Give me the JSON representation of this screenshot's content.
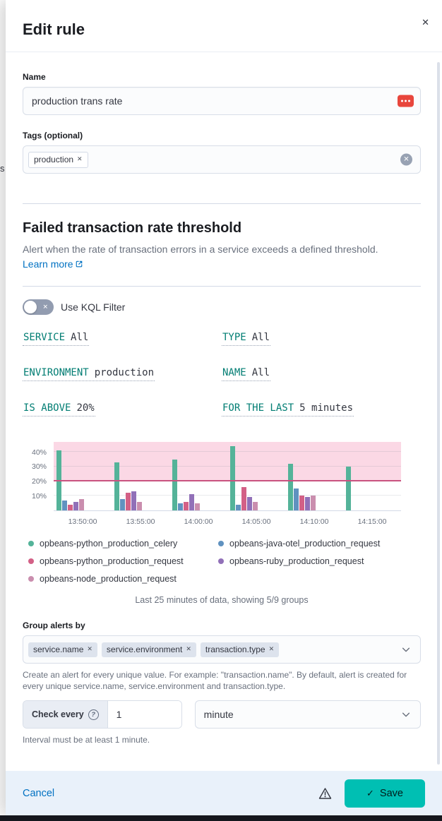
{
  "background_page": {
    "clipped_text_fragment": "s"
  },
  "flyout": {
    "title": "Edit rule"
  },
  "icons": {
    "close": "✕",
    "remove_tag": "✕",
    "clear": "✕",
    "check": "✓",
    "question": "?"
  },
  "name_field": {
    "label": "Name",
    "value": "production trans rate"
  },
  "tags_field": {
    "label": "Tags (optional)",
    "tags": [
      {
        "label": "production"
      }
    ]
  },
  "rule_section": {
    "title": "Failed transaction rate threshold",
    "description": "Alert when the rate of transaction errors in a service exceeds a defined threshold.",
    "learn_more_label": "Learn more"
  },
  "kql_switch": {
    "label": "Use KQL Filter",
    "state": "off"
  },
  "expressions": [
    {
      "keyword": "SERVICE",
      "value": "All"
    },
    {
      "keyword": "TYPE",
      "value": "All"
    },
    {
      "keyword": "ENVIRONMENT",
      "value": "production"
    },
    {
      "keyword": "NAME",
      "value": "All"
    },
    {
      "keyword": "IS ABOVE",
      "value": "20%"
    },
    {
      "keyword": "FOR THE LAST",
      "value": "5 minutes"
    }
  ],
  "chart_data": {
    "type": "bar",
    "title": "",
    "xlabel": "",
    "ylabel": "",
    "categories": [
      "13:50:00",
      "13:55:00",
      "14:00:00",
      "14:05:00",
      "14:10:00",
      "14:15:00"
    ],
    "series": [
      {
        "name": "opbeans-python_production_celery",
        "color": "#54B399",
        "values": [
          41,
          33,
          35,
          44,
          32,
          30
        ]
      },
      {
        "name": "opbeans-java-otel_production_request",
        "color": "#6092C0",
        "values": [
          7,
          8,
          5,
          4,
          15,
          0
        ]
      },
      {
        "name": "opbeans-python_production_request",
        "color": "#D36086",
        "values": [
          4,
          12,
          6,
          16,
          10,
          0
        ]
      },
      {
        "name": "opbeans-ruby_production_request",
        "color": "#9170B8",
        "values": [
          6,
          13,
          11,
          9,
          9,
          0
        ]
      },
      {
        "name": "opbeans-node_production_request",
        "color": "#CA8EAE",
        "values": [
          8,
          6,
          5,
          6,
          10,
          0
        ]
      }
    ],
    "ylim": [
      0,
      47
    ],
    "yticks": [
      40,
      30,
      20,
      10
    ],
    "ytick_suffix": "%",
    "threshold": 20,
    "threshold_line_color": "#c9537f",
    "threshold_fill_color": "rgba(240, 110, 160, 0.27)",
    "grid": true,
    "legend_position": "bottom"
  },
  "legend": {
    "columns": [
      [
        {
          "label": "opbeans-python_production_celery",
          "color": "#54B399"
        },
        {
          "label": "opbeans-python_production_request",
          "color": "#D36086"
        },
        {
          "label": "opbeans-node_production_request",
          "color": "#CA8EAE"
        }
      ],
      [
        {
          "label": "opbeans-java-otel_production_request",
          "color": "#6092C0"
        },
        {
          "label": "opbeans-ruby_production_request",
          "color": "#9170B8"
        }
      ]
    ]
  },
  "chart_caption": "Last 25 minutes of data, showing 5/9 groups",
  "group_by": {
    "label": "Group alerts by",
    "selected": [
      {
        "label": "service.name"
      },
      {
        "label": "service.environment"
      },
      {
        "label": "transaction.type"
      }
    ],
    "help": "Create an alert for every unique value. For example: \"transaction.name\". By default, alert is created for every unique service.name, service.environment and transaction.type."
  },
  "check_every": {
    "label": "Check every",
    "value": "1",
    "unit": "minute",
    "help": "Interval must be at least 1 minute."
  },
  "footer": {
    "cancel_label": "Cancel",
    "save_label": "Save"
  },
  "colors": {
    "accent": "#00BFB3",
    "link": "#0071C2",
    "expression_keyword": "#017D73"
  }
}
